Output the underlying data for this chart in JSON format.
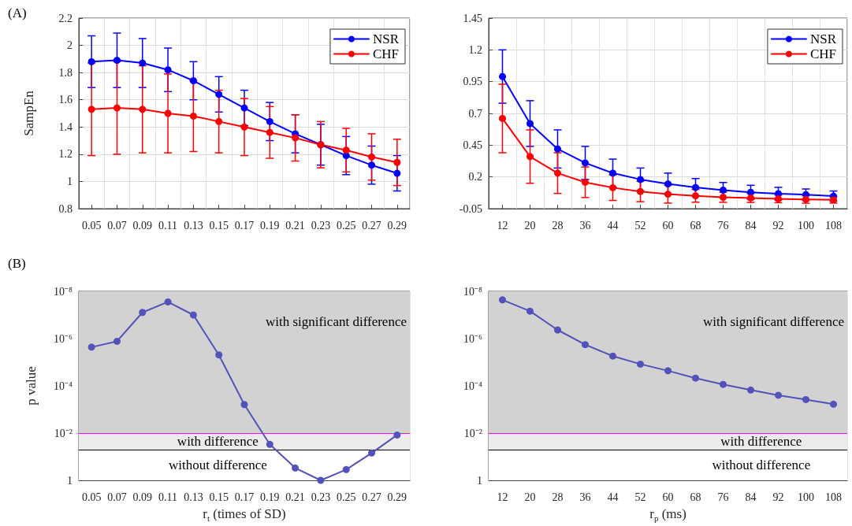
{
  "chart_data": [
    {
      "type": "line",
      "annotations": [
        "(A)"
      ],
      "ylabel": "SampEn",
      "categories": [
        "0.05",
        "0.07",
        "0.09",
        "0.11",
        "0.13",
        "0.15",
        "0.17",
        "0.19",
        "0.21",
        "0.23",
        "0.25",
        "0.27",
        "0.29"
      ],
      "series": [
        {
          "name": "NSR",
          "color": "#0000ff",
          "values": [
            1.88,
            1.89,
            1.87,
            1.82,
            1.74,
            1.64,
            1.54,
            1.44,
            1.35,
            1.27,
            1.19,
            1.12,
            1.06
          ],
          "errors": [
            0.19,
            0.2,
            0.18,
            0.16,
            0.14,
            0.13,
            0.13,
            0.14,
            0.14,
            0.15,
            0.14,
            0.14,
            0.13
          ]
        },
        {
          "name": "CHF",
          "color": "#ff0000",
          "values": [
            1.53,
            1.54,
            1.53,
            1.5,
            1.48,
            1.44,
            1.4,
            1.36,
            1.32,
            1.27,
            1.23,
            1.18,
            1.14
          ],
          "errors": [
            0.34,
            0.34,
            0.32,
            0.29,
            0.26,
            0.23,
            0.21,
            0.19,
            0.17,
            0.17,
            0.16,
            0.17,
            0.17
          ]
        }
      ],
      "ylim": [
        0.8,
        2.2
      ],
      "yticks": [
        0.8,
        1,
        1.2,
        1.4,
        1.6,
        1.8,
        2,
        2.2
      ],
      "grid": true,
      "legend": "top right",
      "marker": "circle"
    },
    {
      "type": "line",
      "categories": [
        "12",
        "20",
        "28",
        "36",
        "44",
        "52",
        "60",
        "68",
        "76",
        "84",
        "92",
        "100",
        "108"
      ],
      "series": [
        {
          "name": "NSR",
          "color": "#0000ff",
          "values": [
            0.99,
            0.62,
            0.42,
            0.31,
            0.23,
            0.18,
            0.145,
            0.117,
            0.096,
            0.079,
            0.068,
            0.06,
            0.049
          ],
          "errors": [
            0.21,
            0.18,
            0.15,
            0.13,
            0.11,
            0.09,
            0.085,
            0.07,
            0.06,
            0.055,
            0.05,
            0.045,
            0.04
          ]
        },
        {
          "name": "CHF",
          "color": "#ff0000",
          "values": [
            0.66,
            0.36,
            0.23,
            0.158,
            0.115,
            0.085,
            0.064,
            0.051,
            0.04,
            0.034,
            0.027,
            0.023,
            0.019
          ],
          "errors": [
            0.27,
            0.21,
            0.16,
            0.12,
            0.1,
            0.08,
            0.07,
            0.05,
            0.04,
            0.035,
            0.03,
            0.03,
            0.025
          ]
        }
      ],
      "ylim": [
        -0.05,
        1.45
      ],
      "yticks": [
        -0.05,
        0.2,
        0.45,
        0.7,
        0.95,
        1.2,
        1.45
      ],
      "grid": true,
      "legend": "top right",
      "marker": "circle"
    },
    {
      "type": "line",
      "annotations": [
        "(B)"
      ],
      "ylabel": "p value",
      "xlabel": "r$_{t}$ (times of SD)",
      "categories": [
        "0.05",
        "0.07",
        "0.09",
        "0.11",
        "0.13",
        "0.15",
        "0.17",
        "0.19",
        "0.21",
        "0.23",
        "0.25",
        "0.27",
        "0.29"
      ],
      "series": [
        {
          "color": "#5252b8",
          "values": [
            2.3e-06,
            1.3e-06,
            7.8e-08,
            2.8e-08,
            1e-07,
            4.9e-06,
            0.00062,
            0.03,
            0.3,
            1,
            0.35,
            0.07,
            0.012
          ]
        }
      ],
      "log": "y",
      "ylim": [
        1,
        1e-08
      ],
      "yticks": [
        {
          "value": 1e-08,
          "label": "10⁻⁸"
        },
        {
          "value": 1e-06,
          "label": "10⁻⁶"
        },
        {
          "value": 0.0001,
          "label": "10⁻⁴"
        },
        {
          "value": 0.01,
          "label": "10⁻²"
        },
        1
      ],
      "bands": [
        {
          "axis": "y",
          "from": 1e-08,
          "to": 0.01,
          "label": "with significant difference",
          "color": "#d2d2d2"
        },
        {
          "axis": "y",
          "from": 0.01,
          "to": 0.05,
          "label": "with difference",
          "color": "#ebebeb"
        },
        {
          "axis": "y",
          "from": 0.05,
          "to": 1,
          "label": "without difference",
          "color": "#ffffff"
        }
      ],
      "ref_lines": [
        {
          "axis": "y",
          "value": 0.01,
          "color": "#ff00ff",
          "line_style": "solid"
        },
        {
          "axis": "y",
          "value": 0.05,
          "color": "#000000",
          "line_style": "solid"
        }
      ],
      "grid": true,
      "marker": "circle"
    },
    {
      "type": "line",
      "xlabel": "r$_{p}$ (ms)",
      "categories": [
        "12",
        "20",
        "28",
        "36",
        "44",
        "52",
        "60",
        "68",
        "76",
        "84",
        "92",
        "100",
        "108"
      ],
      "series": [
        {
          "color": "#5252b8",
          "values": [
            2.3e-08,
            6.9e-08,
            4.3e-07,
            1.8e-06,
            5.5e-06,
            1.2e-05,
            2.3e-05,
            4.7e-05,
            8.7e-05,
            0.00015,
            0.00025,
            0.00038,
            0.0006
          ]
        }
      ],
      "log": "y",
      "ylim": [
        1,
        1e-08
      ],
      "yticks": [
        {
          "value": 1e-08,
          "label": "10⁻⁸"
        },
        {
          "value": 1e-06,
          "label": "10⁻⁶"
        },
        {
          "value": 0.0001,
          "label": "10⁻⁴"
        },
        {
          "value": 0.01,
          "label": "10⁻²"
        },
        1
      ],
      "bands": [
        {
          "axis": "y",
          "from": 1e-08,
          "to": 0.01,
          "label": "with significant difference",
          "color": "#d2d2d2"
        },
        {
          "axis": "y",
          "from": 0.01,
          "to": 0.05,
          "label": "with difference",
          "color": "#ebebeb"
        },
        {
          "axis": "y",
          "from": 0.05,
          "to": 1,
          "label": "without difference",
          "color": "#ffffff"
        }
      ],
      "ref_lines": [
        {
          "axis": "y",
          "value": 0.01,
          "color": "#ff00ff",
          "line_style": "solid"
        },
        {
          "axis": "y",
          "value": 0.05,
          "color": "#000000",
          "line_style": "solid"
        }
      ],
      "grid": true,
      "marker": "circle"
    }
  ]
}
